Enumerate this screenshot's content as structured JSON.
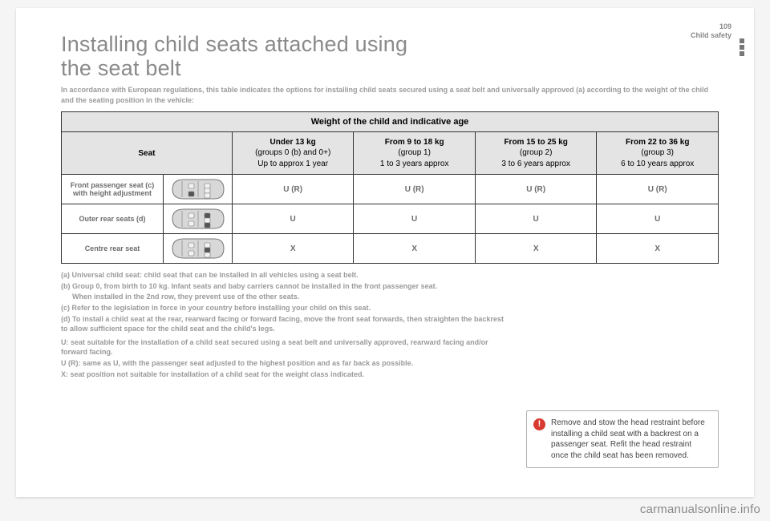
{
  "header": {
    "page_number": "109",
    "section": "Child safety"
  },
  "title_line1": "Installing child seats attached using",
  "title_line2": "the seat belt",
  "intro": "In accordance with European regulations, this table indicates the options for installing child seats secured using a seat belt and universally approved (a) according to the weight of the child and the seating position in the vehicle:",
  "table": {
    "caption": "Weight of the child and indicative age",
    "seat_header": "Seat",
    "weight_cols": [
      {
        "bold": "Under 13 kg",
        "line2": "(groups 0 (b) and 0+)",
        "line3": "Up to approx 1 year"
      },
      {
        "bold": "From 9 to 18 kg",
        "line2": "(group 1)",
        "line3": "1 to 3 years approx"
      },
      {
        "bold": "From 15 to 25 kg",
        "line2": "(group 2)",
        "line3": "3 to 6 years approx"
      },
      {
        "bold": "From 22 to 36 kg",
        "line2": "(group 3)",
        "line3": "6 to 10 years approx"
      }
    ],
    "rows": [
      {
        "label": "Front passenger seat (c) with height adjustment",
        "seats": [
          0
        ],
        "values": [
          "U (R)",
          "U (R)",
          "U (R)",
          "U (R)"
        ]
      },
      {
        "label": "Outer rear seats (d)",
        "seats": [
          1,
          3
        ],
        "values": [
          "U",
          "U",
          "U",
          "U"
        ]
      },
      {
        "label": "Centre rear seat",
        "seats": [
          2
        ],
        "values": [
          "X",
          "X",
          "X",
          "X"
        ]
      }
    ]
  },
  "footnotes": {
    "a": "(a) Universal child seat: child seat that can be installed in all vehicles using a seat belt.",
    "b": "(b) Group 0, from birth to 10 kg. Infant seats and baby carriers cannot be installed in the front passenger seat.",
    "b2": "When installed in the 2nd row, they prevent use of the other seats.",
    "c": "(c) Refer to the legislation in force in your country before installing your child on this seat.",
    "d": "(d) To install a child seat at the rear, rearward facing or forward facing, move the front seat forwards, then straighten the backrest to allow sufficient space for the child seat and the child's legs.",
    "u_def": "U: seat suitable for the installation of a child seat secured using a seat belt and universally approved, rearward facing and/or forward facing.",
    "ur_def": "U (R): same as U, with the passenger seat adjusted to the highest position and as far back as possible.",
    "x_def": "X: seat position not suitable for installation of a child seat for the weight class indicated."
  },
  "warning": {
    "text": "Remove and stow the head restraint before installing a child seat with a backrest on a passenger seat. Refit the head restraint once the child seat has been removed."
  },
  "watermark": "carmanualsonline.info",
  "car_icon": {
    "body_fill": "#d8d8d8",
    "body_stroke": "#777777",
    "seat_inactive": "#f2f2f2",
    "seat_active": "#555555"
  }
}
